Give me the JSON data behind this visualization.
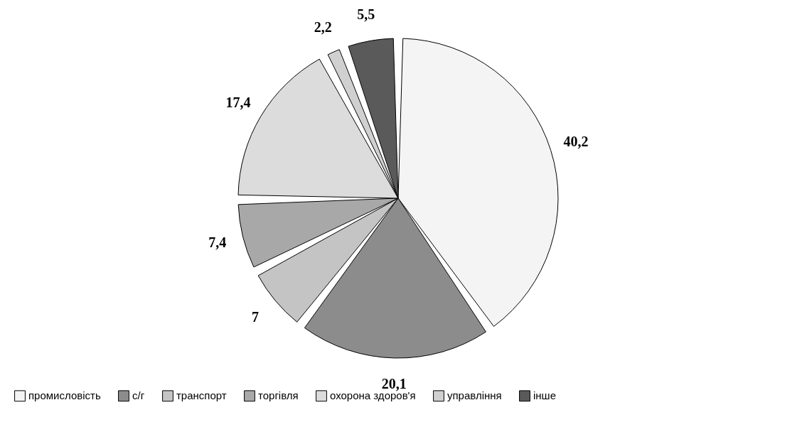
{
  "chart_data": {
    "type": "pie",
    "categories": [
      "промисловість",
      "с/г",
      "транспорт",
      "торгівля",
      "охорона здоров'я",
      "управління",
      "інше"
    ],
    "values": [
      40.2,
      20.1,
      7,
      7.4,
      17.4,
      2.2,
      5.5
    ],
    "value_labels": [
      "40,2",
      "20,1",
      "7",
      "7,4",
      "17,4",
      "2,2",
      "5,5"
    ],
    "colors": [
      "#f4f4f4",
      "#8c8c8c",
      "#c4c4c4",
      "#a8a8a8",
      "#dcdcdc",
      "#d0d0d0",
      "#5a5a5a"
    ],
    "legend": "bottom"
  }
}
